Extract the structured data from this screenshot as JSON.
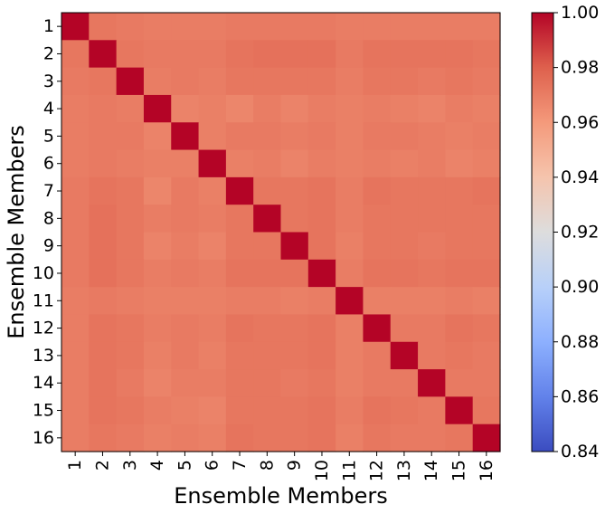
{
  "chart_data": {
    "type": "heatmap",
    "title": "",
    "xlabel": "Ensemble Members",
    "ylabel": "Ensemble Members",
    "x_categories": [
      "1",
      "2",
      "3",
      "4",
      "5",
      "6",
      "7",
      "8",
      "9",
      "10",
      "11",
      "12",
      "13",
      "14",
      "15",
      "16"
    ],
    "y_categories": [
      "1",
      "2",
      "3",
      "4",
      "5",
      "6",
      "7",
      "8",
      "9",
      "10",
      "11",
      "12",
      "13",
      "14",
      "15",
      "16"
    ],
    "colormap": "coolwarm",
    "color_range": [
      0.84,
      1.0
    ],
    "colorbar_ticks": [
      "0.84",
      "0.86",
      "0.88",
      "0.90",
      "0.92",
      "0.94",
      "0.96",
      "0.98",
      "1.00"
    ],
    "colorbar_tick_values": [
      0.84,
      0.86,
      0.88,
      0.9,
      0.92,
      0.94,
      0.96,
      0.98,
      1.0
    ],
    "values": [
      [
        1.0,
        0.972,
        0.971,
        0.97,
        0.97,
        0.97,
        0.971,
        0.971,
        0.971,
        0.971,
        0.97,
        0.97,
        0.97,
        0.97,
        0.97,
        0.97
      ],
      [
        0.972,
        1.0,
        0.972,
        0.971,
        0.971,
        0.971,
        0.973,
        0.974,
        0.974,
        0.974,
        0.971,
        0.973,
        0.973,
        0.973,
        0.973,
        0.972
      ],
      [
        0.971,
        0.972,
        1.0,
        0.97,
        0.971,
        0.97,
        0.972,
        0.972,
        0.972,
        0.972,
        0.97,
        0.972,
        0.972,
        0.971,
        0.972,
        0.971
      ],
      [
        0.97,
        0.971,
        0.97,
        1.0,
        0.968,
        0.969,
        0.967,
        0.97,
        0.968,
        0.97,
        0.969,
        0.97,
        0.969,
        0.968,
        0.97,
        0.969
      ],
      [
        0.97,
        0.971,
        0.971,
        0.968,
        1.0,
        0.969,
        0.971,
        0.971,
        0.97,
        0.971,
        0.969,
        0.971,
        0.971,
        0.97,
        0.969,
        0.97
      ],
      [
        0.97,
        0.971,
        0.97,
        0.969,
        0.969,
        1.0,
        0.969,
        0.97,
        0.968,
        0.97,
        0.969,
        0.97,
        0.969,
        0.97,
        0.968,
        0.969
      ],
      [
        0.971,
        0.973,
        0.972,
        0.967,
        0.971,
        0.969,
        1.0,
        0.972,
        0.972,
        0.973,
        0.97,
        0.973,
        0.972,
        0.972,
        0.972,
        0.973
      ],
      [
        0.971,
        0.974,
        0.972,
        0.97,
        0.971,
        0.97,
        0.972,
        1.0,
        0.972,
        0.973,
        0.97,
        0.972,
        0.972,
        0.972,
        0.972,
        0.972
      ],
      [
        0.971,
        0.974,
        0.972,
        0.968,
        0.97,
        0.968,
        0.972,
        0.972,
        1.0,
        0.973,
        0.969,
        0.972,
        0.972,
        0.971,
        0.972,
        0.972
      ],
      [
        0.971,
        0.974,
        0.972,
        0.97,
        0.971,
        0.97,
        0.973,
        0.973,
        0.973,
        1.0,
        0.97,
        0.973,
        0.973,
        0.972,
        0.973,
        0.973
      ],
      [
        0.97,
        0.971,
        0.97,
        0.969,
        0.969,
        0.969,
        0.97,
        0.97,
        0.969,
        0.97,
        1.0,
        0.969,
        0.969,
        0.969,
        0.97,
        0.969
      ],
      [
        0.97,
        0.973,
        0.972,
        0.97,
        0.971,
        0.97,
        0.973,
        0.972,
        0.972,
        0.973,
        0.969,
        1.0,
        0.971,
        0.971,
        0.973,
        0.972
      ],
      [
        0.97,
        0.973,
        0.972,
        0.969,
        0.971,
        0.969,
        0.972,
        0.972,
        0.972,
        0.973,
        0.969,
        0.971,
        1.0,
        0.971,
        0.972,
        0.971
      ],
      [
        0.97,
        0.973,
        0.971,
        0.968,
        0.97,
        0.97,
        0.972,
        0.972,
        0.971,
        0.972,
        0.969,
        0.971,
        0.971,
        1.0,
        0.971,
        0.971
      ],
      [
        0.97,
        0.973,
        0.972,
        0.97,
        0.969,
        0.968,
        0.972,
        0.972,
        0.972,
        0.973,
        0.97,
        0.973,
        0.972,
        0.971,
        1.0,
        0.972
      ],
      [
        0.97,
        0.972,
        0.971,
        0.969,
        0.97,
        0.969,
        0.973,
        0.972,
        0.972,
        0.973,
        0.969,
        0.972,
        0.971,
        0.971,
        0.972,
        1.0
      ]
    ],
    "grid": false,
    "legend": "colorbar-right"
  }
}
